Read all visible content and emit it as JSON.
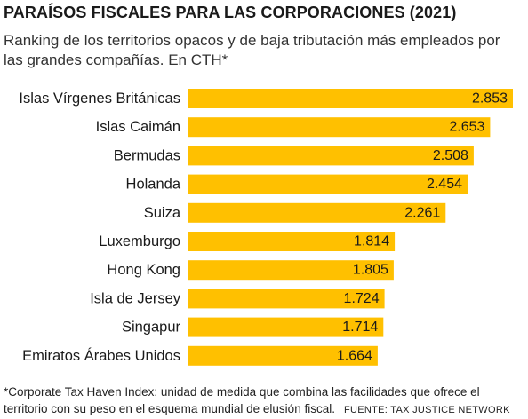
{
  "title": "PARAÍSOS FISCALES PARA LAS CORPORACIONES (2021)",
  "subtitle": "Ranking de los territorios opacos y de baja tributación más empleados por las grandes compañías. En CTH*",
  "footnote": "*Corporate Tax Haven Index: unidad de medida que combina las facilidades que ofrece el territorio con su peso en el esquema mundial de elusión fiscal.",
  "source": "FUENTE: TAX JUSTICE NETWORK",
  "colors": {
    "bar": "#FFC000",
    "text": "#1a1a1a"
  },
  "chart_data": {
    "type": "bar",
    "orientation": "horizontal",
    "categories": [
      "Islas Vírgenes Británicas",
      "Islas Caimán",
      "Bermudas",
      "Holanda",
      "Suiza",
      "Luxemburgo",
      "Hong Kong",
      "Isla de Jersey",
      "Singapur",
      "Emiratos Árabes Unidos"
    ],
    "values": [
      2853,
      2653,
      2508,
      2454,
      2261,
      1814,
      1805,
      1724,
      1714,
      1664
    ],
    "data_labels": [
      "2.853",
      "2.653",
      "2.508",
      "2.454",
      "2.261",
      "1.814",
      "1.805",
      "1.724",
      "1.714",
      "1.664"
    ],
    "xlim": [
      0,
      2853
    ],
    "grid": false,
    "legend": "none"
  }
}
